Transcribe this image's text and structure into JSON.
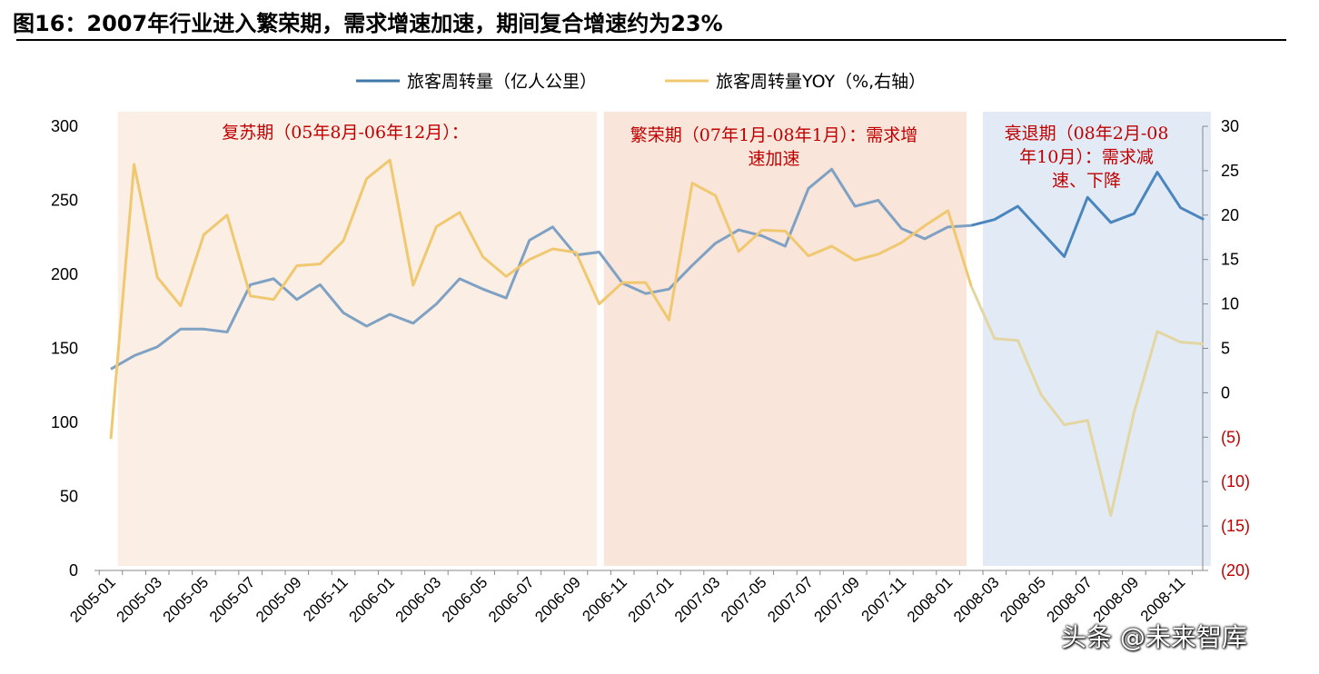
{
  "figure": {
    "title": "图16：2007年行业进入繁荣期，需求增速加速，期间复合增速约为23%"
  },
  "watermark": "头条 @未来智库",
  "chart_data": {
    "type": "line",
    "legend_position": "top-center",
    "grid": false,
    "x": [
      "2005-01",
      "2005-02",
      "2005-03",
      "2005-04",
      "2005-05",
      "2005-06",
      "2005-07",
      "2005-08",
      "2005-09",
      "2005-10",
      "2005-11",
      "2005-12",
      "2006-01",
      "2006-02",
      "2006-03",
      "2006-04",
      "2006-05",
      "2006-06",
      "2006-07",
      "2006-08",
      "2006-09",
      "2006-10",
      "2006-11",
      "2006-12",
      "2007-01",
      "2007-02",
      "2007-03",
      "2007-04",
      "2007-05",
      "2007-06",
      "2007-07",
      "2007-08",
      "2007-09",
      "2007-10",
      "2007-11",
      "2007-12",
      "2008-01",
      "2008-02",
      "2008-03",
      "2008-04",
      "2008-05",
      "2008-06",
      "2008-07",
      "2008-08",
      "2008-09",
      "2008-10",
      "2008-11",
      "2008-12"
    ],
    "x_tick_labels": [
      "2005-01",
      "2005-03",
      "2005-05",
      "2005-07",
      "2005-09",
      "2005-11",
      "2006-01",
      "2006-03",
      "2006-05",
      "2006-07",
      "2006-09",
      "2006-11",
      "2007-01",
      "2007-03",
      "2007-05",
      "2007-07",
      "2007-09",
      "2007-11",
      "2008-01",
      "2008-03",
      "2008-05",
      "2008-07",
      "2008-09",
      "2008-11"
    ],
    "y_left": {
      "ylim": [
        0,
        300
      ],
      "ticks": [
        "0",
        "50",
        "100",
        "150",
        "200",
        "250",
        "300"
      ]
    },
    "y_right": {
      "ylim": [
        -20,
        30
      ],
      "ticks": [
        {
          "label": "(20)",
          "value": -20,
          "negative": true
        },
        {
          "label": "(15)",
          "value": -15,
          "negative": true
        },
        {
          "label": "(10)",
          "value": -10,
          "negative": true
        },
        {
          "label": "(5)",
          "value": -5,
          "negative": true
        },
        {
          "label": "0",
          "value": 0,
          "negative": false
        },
        {
          "label": "5",
          "value": 5,
          "negative": false
        },
        {
          "label": "10",
          "value": 10,
          "negative": false
        },
        {
          "label": "15",
          "value": 15,
          "negative": false
        },
        {
          "label": "20",
          "value": 20,
          "negative": false
        },
        {
          "label": "25",
          "value": 25,
          "negative": false
        },
        {
          "label": "30",
          "value": 30,
          "negative": false
        }
      ]
    },
    "series": [
      {
        "name": "旅客周转量（亿人公里）",
        "axis": "left",
        "color": "#3e77a8",
        "values": [
          136,
          145,
          151,
          163,
          163,
          161,
          193,
          197,
          183,
          193,
          174,
          165,
          173,
          167,
          180,
          197,
          190,
          184,
          223,
          232,
          213,
          215,
          194,
          187,
          190,
          206,
          221,
          230,
          226,
          219,
          258,
          271,
          246,
          250,
          231,
          224,
          232,
          233,
          237,
          246,
          229,
          212,
          252,
          235,
          241,
          269,
          245,
          237
        ]
      },
      {
        "name": "旅客周转量YOY（%,右轴）",
        "axis": "right",
        "color": "#f0c870",
        "faded_color": "#e3d6a2",
        "values": [
          -5.2,
          25.7,
          13.0,
          9.8,
          17.8,
          20.0,
          10.9,
          10.5,
          14.3,
          14.5,
          17.1,
          24.1,
          26.2,
          12.1,
          18.7,
          20.3,
          15.3,
          13.1,
          15.0,
          16.2,
          15.8,
          10.0,
          12.4,
          12.4,
          8.2,
          23.6,
          22.2,
          15.9,
          18.3,
          18.2,
          15.4,
          16.5,
          14.9,
          15.6,
          16.9,
          18.8,
          20.5,
          12.0,
          6.1,
          5.9,
          -0.2,
          -3.6,
          -3.1,
          -13.8,
          -2.2,
          6.9,
          5.7,
          5.5
        ]
      }
    ],
    "periods": [
      {
        "label_lines": [
          "复苏期（05年8月-06年12月）："
        ],
        "color": "#fbeee4",
        "from": 0.3,
        "to": 20.9
      },
      {
        "label_lines": [
          "繁荣期（07年1月-08年1月）：需求增",
          "速加速"
        ],
        "color": "#f9e5d9",
        "from": 21.2,
        "to": 36.8
      },
      {
        "label_lines": [
          "衰退期（08年2月-08",
          "年10月）：需求减",
          "速、下降"
        ],
        "color": "#e2ebf5",
        "from": 37.5,
        "to": 47.3
      }
    ]
  }
}
